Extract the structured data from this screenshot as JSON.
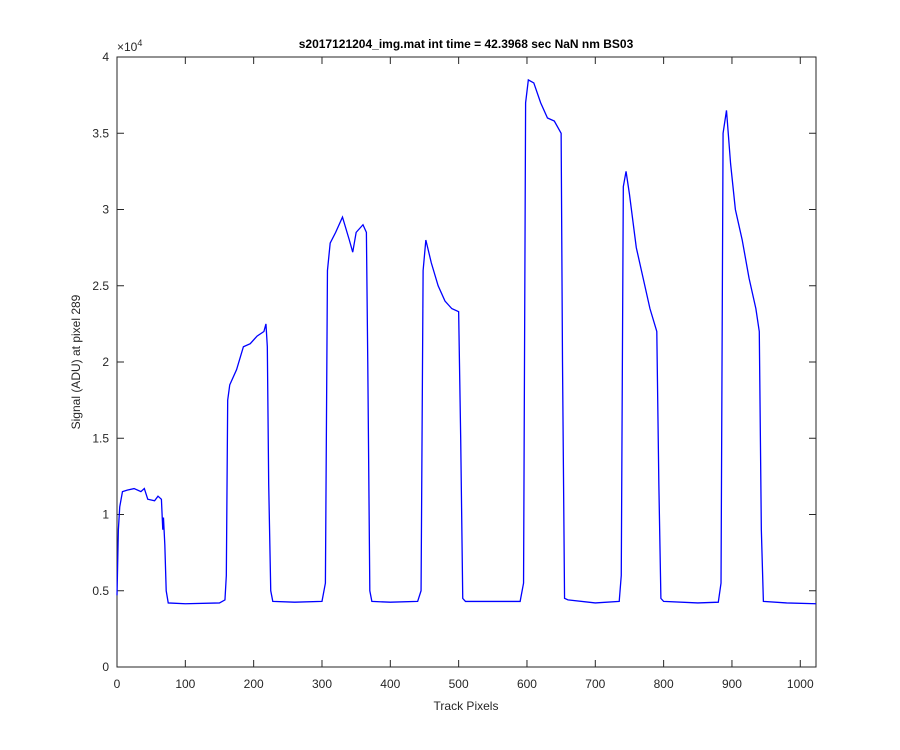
{
  "chart_data": {
    "type": "line",
    "title": "s2017121204_img.mat int time = 42.3968 sec  NaN nm BS03",
    "x_label": "Track Pixels",
    "y_label": "Signal (ADU) at pixel 289",
    "y_multiplier": {
      "base": "×10",
      "exponent": "4"
    },
    "color": "#0000ff",
    "x": [
      0,
      2,
      4,
      8,
      15,
      25,
      35,
      40,
      45,
      55,
      60,
      65,
      67,
      68,
      70,
      72,
      75,
      100,
      150,
      158,
      160,
      162,
      165,
      175,
      185,
      195,
      205,
      215,
      218,
      220,
      222,
      225,
      228,
      260,
      300,
      305,
      308,
      312,
      320,
      330,
      340,
      345,
      350,
      360,
      365,
      367,
      370,
      373,
      400,
      440,
      445,
      448,
      452,
      460,
      470,
      480,
      490,
      500,
      503,
      506,
      510,
      550,
      590,
      595,
      598,
      602,
      610,
      620,
      630,
      640,
      650,
      652,
      655,
      660,
      700,
      735,
      738,
      741,
      745,
      750,
      760,
      770,
      780,
      790,
      793,
      796,
      800,
      850,
      880,
      884,
      887,
      892,
      898,
      905,
      915,
      925,
      935,
      940,
      943,
      946,
      980,
      1023
    ],
    "values": [
      4700,
      9000,
      10500,
      11500,
      11600,
      11700,
      11500,
      11700,
      11000,
      10900,
      11200,
      11000,
      9000,
      9800,
      8000,
      5000,
      4200,
      4150,
      4200,
      4400,
      6000,
      17500,
      18500,
      19500,
      21000,
      21200,
      21700,
      22000,
      22500,
      21000,
      12000,
      5000,
      4300,
      4250,
      4300,
      5500,
      26000,
      27800,
      28500,
      29500,
      28000,
      27200,
      28500,
      29000,
      28500,
      20000,
      5000,
      4300,
      4250,
      4300,
      5000,
      26000,
      28000,
      26500,
      25000,
      24000,
      23500,
      23300,
      15000,
      4500,
      4300,
      4300,
      4300,
      5500,
      37000,
      38500,
      38300,
      37000,
      36000,
      35800,
      35000,
      20000,
      4500,
      4400,
      4200,
      4300,
      6000,
      31500,
      32500,
      31000,
      27500,
      25500,
      23500,
      22000,
      12000,
      4500,
      4300,
      4200,
      4250,
      5500,
      35000,
      36500,
      33000,
      30000,
      28000,
      25500,
      23500,
      22000,
      9000,
      4300,
      4200,
      4150
    ],
    "xlim": [
      0,
      1023
    ],
    "xticks": [
      0,
      100,
      200,
      300,
      400,
      500,
      600,
      700,
      800,
      900,
      1000
    ],
    "ylim": [
      0,
      40000
    ],
    "yticks": [
      {
        "value": 0,
        "label": "0"
      },
      {
        "value": 5000,
        "label": "0.5"
      },
      {
        "value": 10000,
        "label": "1"
      },
      {
        "value": 15000,
        "label": "1.5"
      },
      {
        "value": 20000,
        "label": "2"
      },
      {
        "value": 25000,
        "label": "2.5"
      },
      {
        "value": 30000,
        "label": "3"
      },
      {
        "value": 35000,
        "label": "3.5"
      },
      {
        "value": 40000,
        "label": "4"
      }
    ]
  }
}
